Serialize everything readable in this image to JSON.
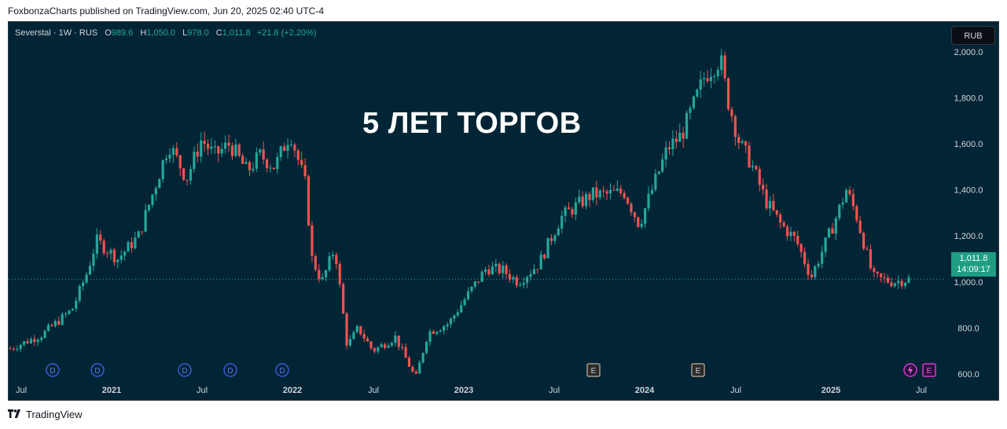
{
  "publisher": "FoxbonzaCharts published on TradingView.com, Jun 20, 2025 02:40 UTC-4",
  "legend": {
    "symbol": "Severstal · 1W · RUS",
    "o_label": "O",
    "o": "989.6",
    "h_label": "H",
    "h": "1,050.0",
    "l_label": "L",
    "l": "978.0",
    "c_label": "C",
    "c": "1,011.8",
    "change": "+21.8 (+2.20%)"
  },
  "currency": "RUB",
  "headline": "5 ЛЕТ ТОРГОВ",
  "last_price": "1,011.8",
  "countdown": "14:09:17",
  "brand": "TradingView",
  "colors": {
    "background": "#022535",
    "up": "#26a69a",
    "down": "#ef5350",
    "text": "#d1d4dc"
  },
  "event_markers": [
    {
      "type": "D",
      "x_label": "2020-09"
    },
    {
      "type": "D",
      "x_label": "2020-12"
    },
    {
      "type": "D",
      "x_label": "2021-06"
    },
    {
      "type": "D",
      "x_label": "2021-08"
    },
    {
      "type": "D",
      "x_label": "2021-11"
    },
    {
      "type": "E",
      "x_label": "2023-09"
    },
    {
      "type": "E",
      "x_label": "2024-04"
    },
    {
      "type": "flash",
      "x_label": "2025-06"
    },
    {
      "type": "E",
      "x_label": "2025-06"
    }
  ],
  "chart_data": {
    "type": "candlestick",
    "interval": "1W",
    "x_ticks": [
      "Jul",
      "2021",
      "Jul",
      "2022",
      "Jul",
      "2023",
      "Jul",
      "2024",
      "Jul",
      "2025",
      "Jul"
    ],
    "y_ticks": [
      "600.0",
      "800.0",
      "1,000.0",
      "1,200.0",
      "1,400.0",
      "1,600.0",
      "1,800.0",
      "2,000.0"
    ],
    "ylim": [
      480,
      2130
    ],
    "start_date": "2020-06-29",
    "end_date": "2025-06-16",
    "anchors": [
      [
        "2020-06-29",
        710
      ],
      [
        "2020-09-01",
        770
      ],
      [
        "2020-11-01",
        880
      ],
      [
        "2020-12-01",
        1040
      ],
      [
        "2020-12-20",
        1180
      ],
      [
        "2021-02-01",
        1100
      ],
      [
        "2021-03-15",
        1200
      ],
      [
        "2021-04-15",
        1400
      ],
      [
        "2021-05-15",
        1600
      ],
      [
        "2021-06-20",
        1450
      ],
      [
        "2021-07-20",
        1620
      ],
      [
        "2021-08-15",
        1550
      ],
      [
        "2021-09-15",
        1600
      ],
      [
        "2021-10-20",
        1480
      ],
      [
        "2021-11-15",
        1550
      ],
      [
        "2021-12-15",
        1500
      ],
      [
        "2022-01-15",
        1650
      ],
      [
        "2022-02-15",
        1420
      ],
      [
        "2022-02-28",
        1100
      ],
      [
        "2022-03-20",
        1000
      ],
      [
        "2022-04-15",
        1150
      ],
      [
        "2022-05-10",
        720
      ],
      [
        "2022-06-01",
        800
      ],
      [
        "2022-07-01",
        700
      ],
      [
        "2022-08-15",
        760
      ],
      [
        "2022-09-25",
        580
      ],
      [
        "2022-10-20",
        780
      ],
      [
        "2022-12-01",
        820
      ],
      [
        "2023-01-10",
        950
      ],
      [
        "2023-02-15",
        1060
      ],
      [
        "2023-03-20",
        1050
      ],
      [
        "2023-04-20",
        1000
      ],
      [
        "2023-06-01",
        1080
      ],
      [
        "2023-07-15",
        1280
      ],
      [
        "2023-09-15",
        1380
      ],
      [
        "2023-10-15",
        1380
      ],
      [
        "2023-11-20",
        1390
      ],
      [
        "2023-12-20",
        1250
      ],
      [
        "2024-01-15",
        1400
      ],
      [
        "2024-02-15",
        1580
      ],
      [
        "2024-03-15",
        1640
      ],
      [
        "2024-04-10",
        1780
      ],
      [
        "2024-05-01",
        1900
      ],
      [
        "2024-06-01",
        1970
      ],
      [
        "2024-06-15",
        1800
      ],
      [
        "2024-07-10",
        1600
      ],
      [
        "2024-08-01",
        1520
      ],
      [
        "2024-09-01",
        1350
      ],
      [
        "2024-10-01",
        1250
      ],
      [
        "2024-11-01",
        1180
      ],
      [
        "2024-12-01",
        1020
      ],
      [
        "2025-01-15",
        1250
      ],
      [
        "2025-02-10",
        1400
      ],
      [
        "2025-03-01",
        1300
      ],
      [
        "2025-04-05",
        1020
      ],
      [
        "2025-05-15",
        1000
      ],
      [
        "2025-06-16",
        1011.8
      ]
    ]
  }
}
